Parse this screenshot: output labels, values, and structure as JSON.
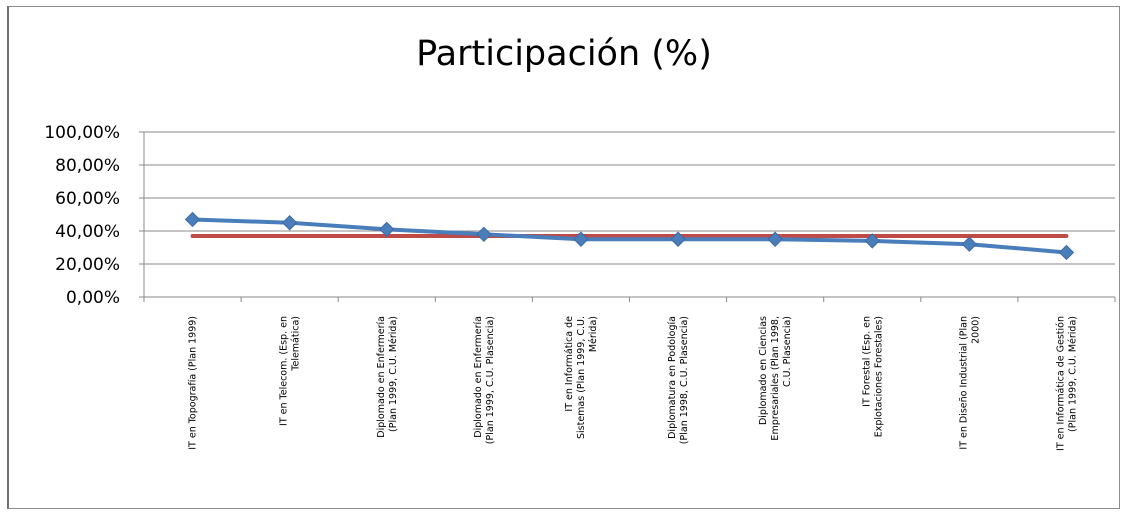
{
  "chart_data": {
    "type": "line",
    "title": "Participación (%)",
    "xlabel": "",
    "ylabel": "",
    "ylim": [
      0,
      100
    ],
    "yticks": [
      "0,00%",
      "20,00%",
      "40,00%",
      "60,00%",
      "80,00%",
      "100,00%"
    ],
    "grid": true,
    "categories": [
      [
        "IT en Topografía (Plan 1999)"
      ],
      [
        "IT en Telecom. (Esp. en",
        "Telemática)"
      ],
      [
        "Diplomado en Enfermería",
        "(Plan 1999, C.U. Mérida)"
      ],
      [
        "Diplomado en Enfermería",
        "(Plan 1999, C.U. Plasencia)"
      ],
      [
        "IT en Informática de",
        "Sistemas (Plan 1999, C.U.",
        "Mérida)"
      ],
      [
        "Diplomatura en Podología",
        "(Plan 1998, C.U. Plasencia)"
      ],
      [
        "Diplomado en Ciencias",
        "Empresariales (Plan 1998,",
        "C.U. Plasencia)"
      ],
      [
        "IT Forestal (Esp. en",
        "Explotaciones Forestales)"
      ],
      [
        "IT en Diseño Industrial (Plan",
        "2000)"
      ],
      [
        "IT en Informática de Gestión",
        "(Plan 1999, C.U. Mérida)"
      ]
    ],
    "series": [
      {
        "values": [
          47,
          45,
          41,
          38,
          35,
          35,
          35,
          34,
          32,
          27
        ],
        "color": "#4a7ebb",
        "marker": "diamond"
      },
      {
        "values": [
          37,
          37,
          37,
          37,
          37,
          37,
          37,
          37,
          37,
          37
        ],
        "color": "#be4b48",
        "marker": "none"
      }
    ]
  }
}
